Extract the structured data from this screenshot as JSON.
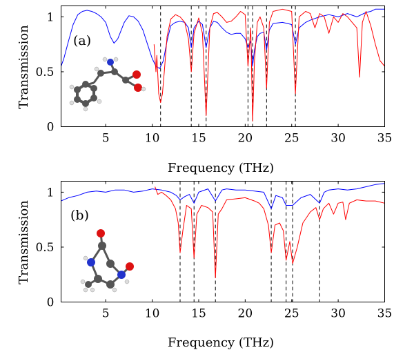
{
  "chart_data": [
    {
      "panel_label": "(a)",
      "type": "line",
      "xlabel": "Frequency (THz)",
      "ylabel": "Transmission",
      "xlim": [
        0.2,
        35
      ],
      "ylim": [
        0,
        1.1
      ],
      "xticks": [
        5,
        10,
        15,
        20,
        25,
        30,
        35
      ],
      "yticks": [
        0,
        0.5,
        1
      ],
      "ytick_labels": [
        "0",
        "0.5",
        "1"
      ],
      "dashed_lines": [
        10.9,
        14.2,
        15.8,
        20.3,
        20.8,
        22.3,
        25.4
      ],
      "series": [
        {
          "color": "#0000ff",
          "x": [
            0.2,
            0.5,
            1,
            1.5,
            2,
            2.5,
            3,
            3.5,
            4,
            4.5,
            5,
            5.5,
            5.9,
            6.3,
            7,
            7.5,
            8,
            8.5,
            9,
            9.5,
            10,
            10.4,
            10.8,
            11.2,
            11.6,
            12,
            12.5,
            13,
            13.5,
            13.9,
            14.2,
            14.5,
            15,
            15.4,
            15.8,
            16.2,
            16.6,
            17,
            17.5,
            18,
            18.5,
            19,
            19.5,
            20,
            20.3,
            20.6,
            20.8,
            21,
            21.3,
            21.6,
            22,
            22.3,
            22.6,
            23,
            24,
            25,
            25.4,
            25.8,
            26.5,
            27,
            28,
            29,
            30,
            31,
            32,
            33,
            33.5,
            34,
            35
          ],
          "values": [
            0.55,
            0.62,
            0.78,
            0.93,
            1.02,
            1.05,
            1.06,
            1.05,
            1.03,
            1.0,
            0.95,
            0.82,
            0.76,
            0.8,
            0.95,
            1.01,
            1.0,
            0.96,
            0.88,
            0.75,
            0.62,
            0.55,
            0.53,
            0.6,
            0.78,
            0.92,
            0.95,
            0.96,
            0.95,
            0.9,
            0.72,
            0.9,
            0.96,
            0.93,
            0.72,
            0.9,
            0.96,
            0.95,
            0.9,
            0.86,
            0.84,
            0.85,
            0.85,
            0.8,
            0.72,
            0.78,
            0.55,
            0.7,
            0.82,
            0.85,
            0.86,
            0.7,
            0.88,
            0.94,
            0.95,
            0.93,
            0.75,
            0.9,
            0.95,
            0.97,
            1.0,
            1.02,
            1.0,
            1.03,
            1.0,
            1.04,
            1.05,
            1.07,
            1.07
          ]
        },
        {
          "color": "#ff0000",
          "x": [
            10.2,
            10.4,
            10.5,
            10.7,
            10.9,
            11.1,
            11.3,
            11.6,
            12,
            12.5,
            13,
            13.5,
            13.9,
            14.2,
            14.5,
            15,
            15.4,
            15.8,
            16.2,
            16.6,
            17,
            17.5,
            18,
            18.5,
            19,
            19.5,
            20,
            20.3,
            20.6,
            20.8,
            21,
            21.3,
            21.6,
            22,
            22.3,
            22.6,
            23,
            24,
            25,
            25.4,
            25.8,
            26.5,
            27,
            27.5,
            28,
            28.5,
            29,
            29.5,
            30,
            30.5,
            31,
            31.5,
            32,
            32.3,
            32.6,
            33,
            33.5,
            34,
            34.5,
            35
          ],
          "values": [
            0.75,
            0.5,
            0.65,
            0.3,
            0.22,
            0.3,
            0.5,
            0.82,
            0.98,
            1.02,
            1.0,
            0.95,
            0.8,
            0.5,
            0.85,
            0.99,
            0.85,
            0.1,
            0.9,
            1.03,
            1.04,
            1.0,
            0.95,
            0.96,
            1.0,
            1.05,
            1.02,
            0.55,
            0.9,
            0.05,
            0.6,
            0.95,
            1.0,
            0.9,
            0.35,
            0.95,
            1.05,
            1.07,
            1.05,
            0.3,
            1.0,
            1.05,
            1.03,
            0.9,
            1.03,
            1.0,
            0.85,
            1.0,
            0.95,
            1.03,
            1.0,
            0.95,
            0.9,
            0.45,
            0.95,
            1.05,
            0.92,
            0.75,
            0.6,
            0.55
          ]
        }
      ]
    },
    {
      "panel_label": "(b)",
      "type": "line",
      "xlabel": "Frequency (THz)",
      "ylabel": "Transmission",
      "xlim": [
        0.2,
        35
      ],
      "ylim": [
        0,
        1.1
      ],
      "xticks": [
        5,
        10,
        15,
        20,
        25,
        30,
        35
      ],
      "yticks": [
        0,
        0.5,
        1
      ],
      "ytick_labels": [
        "0",
        "0.5",
        "1"
      ],
      "dashed_lines": [
        13.0,
        14.5,
        16.8,
        22.8,
        24.4,
        25.1,
        28.0
      ],
      "series": [
        {
          "color": "#0000ff",
          "x": [
            0.2,
            1,
            2,
            3,
            4,
            5,
            6,
            7,
            8,
            9,
            10,
            11,
            12,
            12.6,
            13,
            13.5,
            14,
            14.5,
            15,
            16,
            16.8,
            17.5,
            18,
            19,
            20,
            21,
            22,
            22.8,
            23.3,
            24,
            24.4,
            25.1,
            26,
            27,
            28,
            28.5,
            29,
            30,
            31,
            32,
            33,
            34,
            35
          ],
          "values": [
            0.92,
            0.95,
            0.97,
            1.0,
            1.01,
            1.0,
            1.02,
            1.02,
            1.0,
            1.01,
            1.03,
            1.02,
            1.0,
            0.97,
            0.93,
            0.96,
            0.98,
            0.9,
            1.0,
            1.03,
            0.92,
            1.02,
            1.03,
            1.02,
            1.02,
            1.01,
            1.0,
            0.85,
            0.97,
            0.95,
            0.88,
            0.88,
            0.95,
            0.98,
            0.9,
            1.0,
            1.02,
            1.03,
            1.02,
            1.03,
            1.05,
            1.07,
            1.08
          ]
        },
        {
          "color": "#ff0000",
          "x": [
            10.3,
            10.6,
            11,
            11.5,
            12,
            12.5,
            12.8,
            13.0,
            13.3,
            13.7,
            14.2,
            14.5,
            14.8,
            15.3,
            16,
            16.5,
            16.8,
            17.1,
            17.5,
            18,
            19,
            20,
            21,
            21.5,
            22,
            22.5,
            22.8,
            23.2,
            23.7,
            24.1,
            24.4,
            24.8,
            25.1,
            25.6,
            26.2,
            27,
            27.6,
            28.0,
            28.4,
            29,
            29.5,
            30,
            30.5,
            30.8,
            31.2,
            32,
            33,
            34,
            35
          ],
          "values": [
            1.05,
            0.98,
            1.0,
            0.97,
            0.93,
            0.85,
            0.72,
            0.45,
            0.65,
            0.88,
            0.85,
            0.4,
            0.8,
            0.88,
            0.86,
            0.82,
            0.22,
            0.8,
            0.85,
            0.93,
            0.94,
            0.95,
            0.92,
            0.9,
            0.85,
            0.7,
            0.45,
            0.7,
            0.72,
            0.65,
            0.38,
            0.55,
            0.35,
            0.5,
            0.72,
            0.82,
            0.86,
            0.75,
            0.85,
            0.9,
            0.8,
            0.9,
            0.91,
            0.75,
            0.9,
            0.93,
            0.92,
            0.92,
            0.9
          ]
        }
      ]
    }
  ]
}
